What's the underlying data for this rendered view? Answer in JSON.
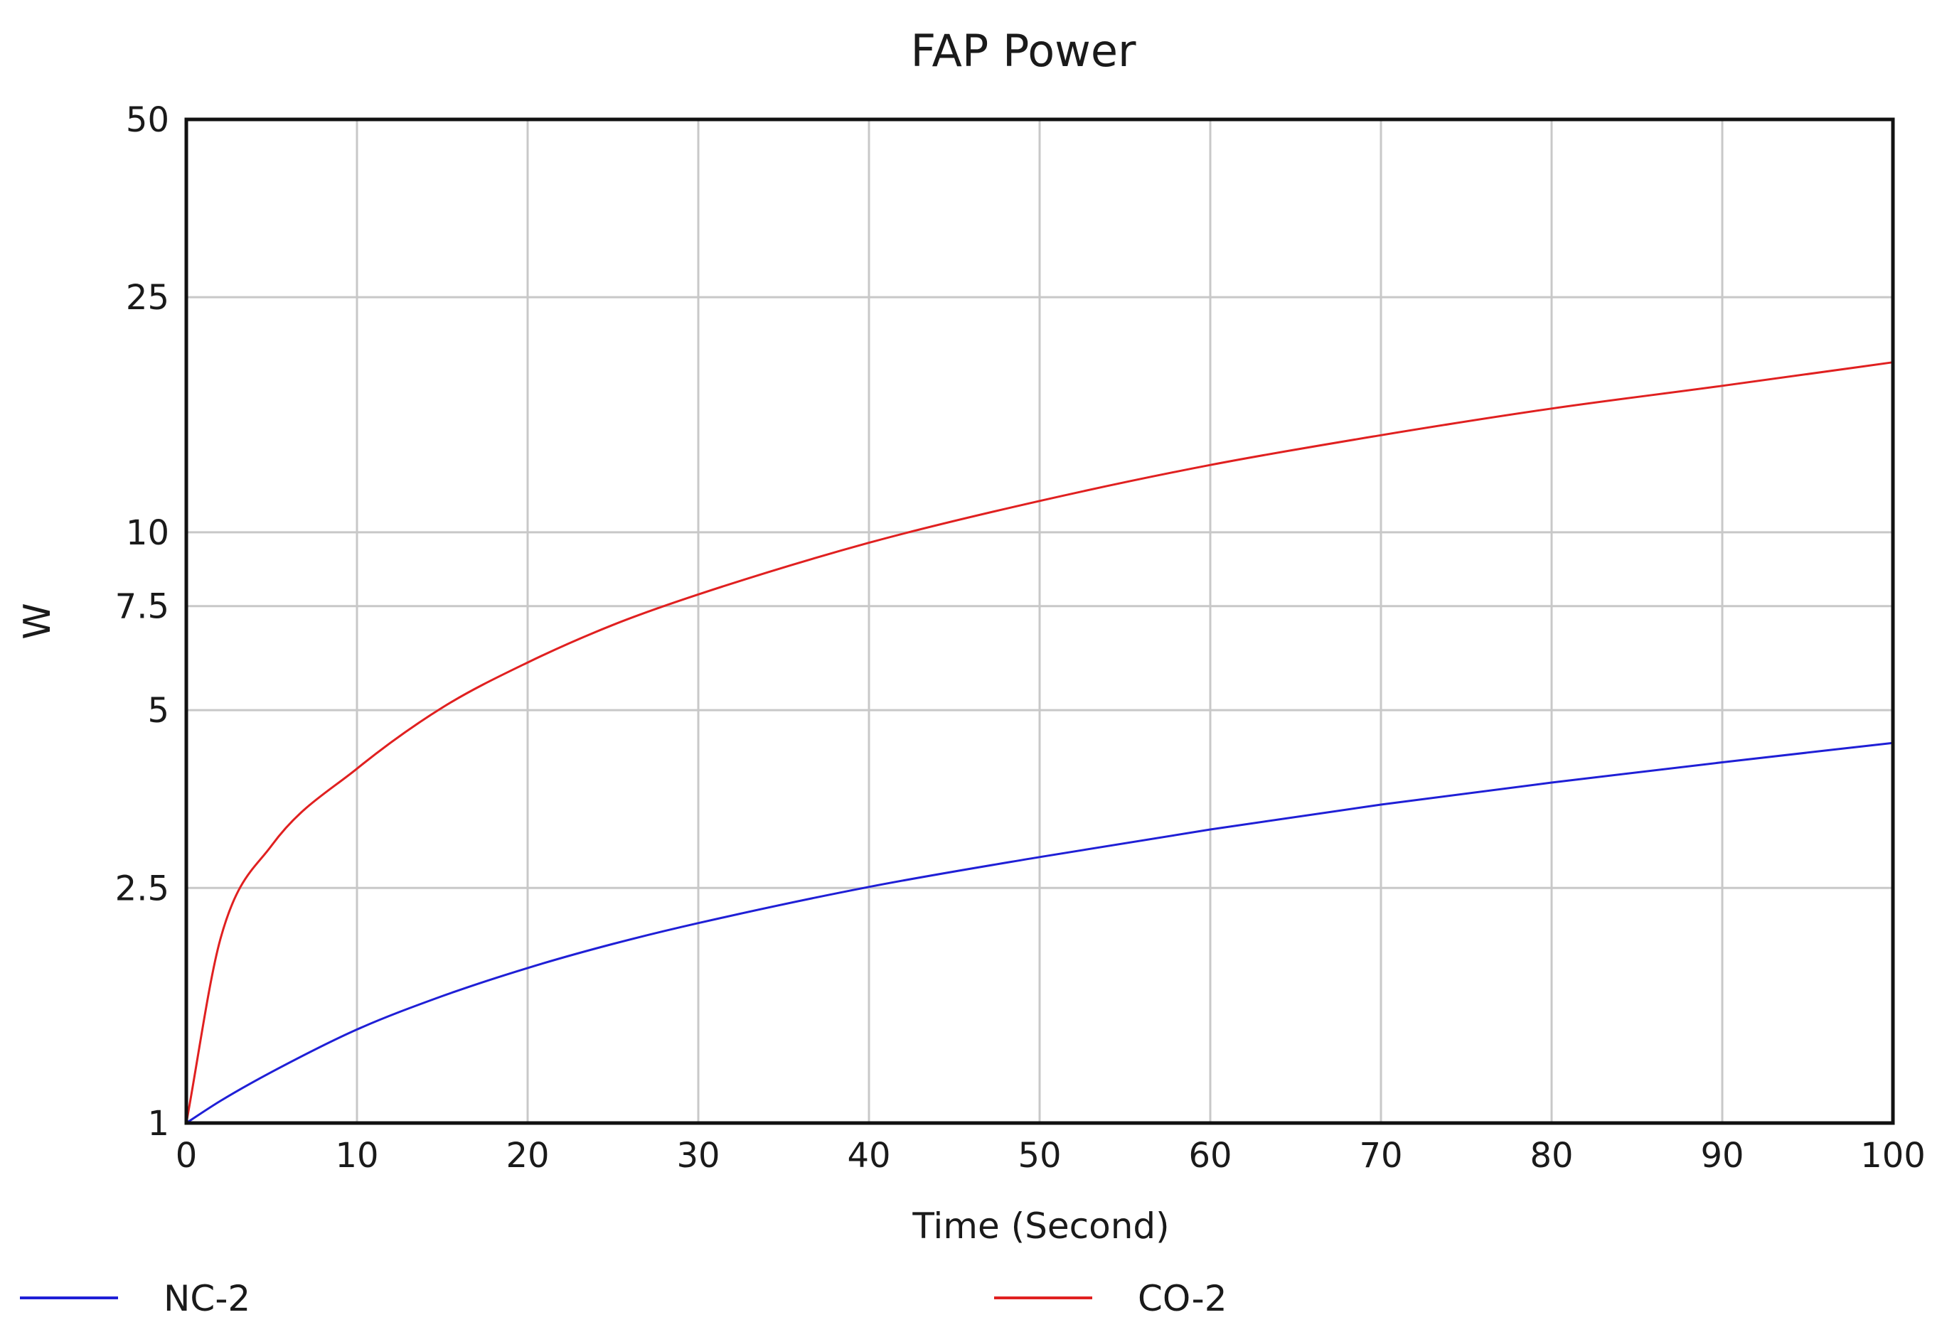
{
  "chart_data": {
    "type": "line",
    "title": "FAP Power",
    "xlabel": "Time (Second)",
    "ylabel": "W",
    "x_scale": "linear",
    "y_scale": "log",
    "xlim": [
      0,
      100
    ],
    "ylim": [
      1,
      50
    ],
    "x_ticks": [
      0,
      10,
      20,
      30,
      40,
      50,
      60,
      70,
      80,
      90,
      100
    ],
    "x_tick_labels": [
      "0",
      "10",
      "20",
      "30",
      "40",
      "50",
      "60",
      "70",
      "80",
      "90",
      "100"
    ],
    "y_ticks": [
      1,
      2.5,
      5,
      7.5,
      10,
      25,
      50
    ],
    "y_tick_labels": [
      "1",
      "2.5",
      "5",
      "7.5",
      "10",
      "25",
      "50"
    ],
    "grid": true,
    "legend_position": "bottom",
    "x": [
      0,
      2,
      5,
      10,
      15,
      20,
      25,
      30,
      40,
      50,
      60,
      70,
      80,
      90,
      100
    ],
    "series": [
      {
        "name": "NC-2",
        "color": "#1f1fd6",
        "values": [
          1.0,
          1.09,
          1.22,
          1.44,
          1.64,
          1.83,
          2.01,
          2.18,
          2.51,
          2.82,
          3.14,
          3.46,
          3.77,
          4.08,
          4.4
        ]
      },
      {
        "name": "CO-2",
        "color": "#e02020",
        "values": [
          1.0,
          2.05,
          2.95,
          3.98,
          5.05,
          6.02,
          6.97,
          7.85,
          9.6,
          11.3,
          13.0,
          14.6,
          16.2,
          17.7,
          19.4
        ]
      }
    ]
  }
}
